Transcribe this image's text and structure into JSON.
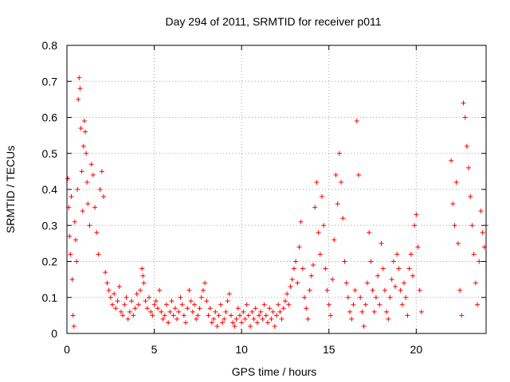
{
  "chart_data": {
    "type": "scatter",
    "title": "Day 294 of 2011, SRMTID for receiver p011",
    "xlabel": "GPS time / hours",
    "ylabel": "SRMTID / TECUs",
    "xlim": [
      0,
      24
    ],
    "ylim": [
      0,
      0.8
    ],
    "xticks": [
      0,
      5,
      10,
      15,
      20
    ],
    "xtick_labels": [
      "0",
      "5",
      "10",
      "15",
      "20"
    ],
    "yticks": [
      0,
      0.1,
      0.2,
      0.3,
      0.4,
      0.5,
      0.6,
      0.7,
      0.8
    ],
    "ytick_labels": [
      "0",
      "0.1",
      "0.2",
      "0.3",
      "0.4",
      "0.5",
      "0.6",
      "0.7",
      "0.8"
    ],
    "grid": true,
    "marker": "+",
    "color": "#ff0000",
    "series": [
      {
        "name": "SRMTID",
        "points": [
          [
            0.05,
            0.43
          ],
          [
            0.1,
            0.35
          ],
          [
            0.15,
            0.27
          ],
          [
            0.2,
            0.22
          ],
          [
            0.25,
            0.38
          ],
          [
            0.3,
            0.15
          ],
          [
            0.35,
            0.05
          ],
          [
            0.4,
            0.02
          ],
          [
            0.45,
            0.31
          ],
          [
            0.5,
            0.26
          ],
          [
            0.55,
            0.2
          ],
          [
            0.6,
            0.4
          ],
          [
            0.65,
            0.65
          ],
          [
            0.7,
            0.71
          ],
          [
            0.75,
            0.68
          ],
          [
            0.8,
            0.57
          ],
          [
            0.85,
            0.45
          ],
          [
            0.9,
            0.34
          ],
          [
            0.95,
            0.52
          ],
          [
            1.0,
            0.59
          ],
          [
            1.05,
            0.56
          ],
          [
            1.1,
            0.5
          ],
          [
            1.15,
            0.42
          ],
          [
            1.2,
            0.36
          ],
          [
            1.3,
            0.3
          ],
          [
            1.4,
            0.47
          ],
          [
            1.5,
            0.44
          ],
          [
            1.6,
            0.35
          ],
          [
            1.7,
            0.28
          ],
          [
            1.8,
            0.22
          ],
          [
            1.9,
            0.4
          ],
          [
            2.0,
            0.45
          ],
          [
            2.1,
            0.38
          ],
          [
            2.2,
            0.17
          ],
          [
            2.3,
            0.14
          ],
          [
            2.4,
            0.12
          ],
          [
            2.5,
            0.1
          ],
          [
            2.6,
            0.08
          ],
          [
            2.7,
            0.11
          ],
          [
            2.8,
            0.07
          ],
          [
            2.9,
            0.09
          ],
          [
            3.0,
            0.13
          ],
          [
            3.1,
            0.06
          ],
          [
            3.2,
            0.05
          ],
          [
            3.3,
            0.08
          ],
          [
            3.4,
            0.1
          ],
          [
            3.5,
            0.04
          ],
          [
            3.6,
            0.06
          ],
          [
            3.7,
            0.09
          ],
          [
            3.8,
            0.05
          ],
          [
            3.9,
            0.07
          ],
          [
            4.0,
            0.11
          ],
          [
            4.1,
            0.08
          ],
          [
            4.2,
            0.12
          ],
          [
            4.3,
            0.18
          ],
          [
            4.35,
            0.16
          ],
          [
            4.4,
            0.14
          ],
          [
            4.5,
            0.09
          ],
          [
            4.6,
            0.07
          ],
          [
            4.7,
            0.1
          ],
          [
            4.8,
            0.06
          ],
          [
            4.9,
            0.05
          ],
          [
            5.0,
            0.08
          ],
          [
            5.1,
            0.09
          ],
          [
            5.2,
            0.07
          ],
          [
            5.3,
            0.12
          ],
          [
            5.4,
            0.06
          ],
          [
            5.5,
            0.04
          ],
          [
            5.6,
            0.05
          ],
          [
            5.7,
            0.08
          ],
          [
            5.8,
            0.03
          ],
          [
            5.9,
            0.06
          ],
          [
            6.0,
            0.09
          ],
          [
            6.1,
            0.05
          ],
          [
            6.2,
            0.07
          ],
          [
            6.3,
            0.04
          ],
          [
            6.4,
            0.06
          ],
          [
            6.5,
            0.1
          ],
          [
            6.6,
            0.08
          ],
          [
            6.7,
            0.05
          ],
          [
            6.8,
            0.03
          ],
          [
            6.9,
            0.07
          ],
          [
            7.0,
            0.12
          ],
          [
            7.1,
            0.09
          ],
          [
            7.2,
            0.06
          ],
          [
            7.3,
            0.08
          ],
          [
            7.4,
            0.04
          ],
          [
            7.5,
            0.05
          ],
          [
            7.6,
            0.07
          ],
          [
            7.7,
            0.1
          ],
          [
            7.8,
            0.12
          ],
          [
            7.9,
            0.14
          ],
          [
            8.0,
            0.09
          ],
          [
            8.1,
            0.05
          ],
          [
            8.2,
            0.07
          ],
          [
            8.3,
            0.03
          ],
          [
            8.4,
            0.04
          ],
          [
            8.5,
            0.06
          ],
          [
            8.6,
            0.02
          ],
          [
            8.7,
            0.05
          ],
          [
            8.8,
            0.08
          ],
          [
            8.9,
            0.03
          ],
          [
            9.0,
            0.04
          ],
          [
            9.1,
            0.06
          ],
          [
            9.2,
            0.09
          ],
          [
            9.3,
            0.11
          ],
          [
            9.4,
            0.05
          ],
          [
            9.5,
            0.03
          ],
          [
            9.6,
            0.02
          ],
          [
            9.7,
            0.04
          ],
          [
            9.8,
            0.07
          ],
          [
            9.9,
            0.05
          ],
          [
            10.0,
            0.03
          ],
          [
            10.1,
            0.06
          ],
          [
            10.2,
            0.04
          ],
          [
            10.3,
            0.08
          ],
          [
            10.4,
            0.05
          ],
          [
            10.5,
            0.02
          ],
          [
            10.6,
            0.06
          ],
          [
            10.7,
            0.04
          ],
          [
            10.8,
            0.07
          ],
          [
            10.9,
            0.03
          ],
          [
            11.0,
            0.05
          ],
          [
            11.1,
            0.06
          ],
          [
            11.2,
            0.04
          ],
          [
            11.3,
            0.08
          ],
          [
            11.4,
            0.05
          ],
          [
            11.5,
            0.03
          ],
          [
            11.6,
            0.07
          ],
          [
            11.7,
            0.04
          ],
          [
            11.8,
            0.06
          ],
          [
            11.9,
            0.02
          ],
          [
            12.0,
            0.05
          ],
          [
            12.1,
            0.08
          ],
          [
            12.2,
            0.06
          ],
          [
            12.3,
            0.04
          ],
          [
            12.4,
            0.07
          ],
          [
            12.5,
            0.09
          ],
          [
            12.6,
            0.11
          ],
          [
            12.7,
            0.08
          ],
          [
            12.8,
            0.13
          ],
          [
            12.9,
            0.15
          ],
          [
            13.0,
            0.18
          ],
          [
            13.1,
            0.2
          ],
          [
            13.2,
            0.14
          ],
          [
            13.3,
            0.24
          ],
          [
            13.4,
            0.31
          ],
          [
            13.5,
            0.18
          ],
          [
            13.6,
            0.1
          ],
          [
            13.7,
            0.07
          ],
          [
            13.8,
            0.04
          ],
          [
            13.9,
            0.12
          ],
          [
            14.0,
            0.16
          ],
          [
            14.1,
            0.19
          ],
          [
            14.2,
            0.35
          ],
          [
            14.3,
            0.42
          ],
          [
            14.4,
            0.28
          ],
          [
            14.5,
            0.22
          ],
          [
            14.6,
            0.38
          ],
          [
            14.7,
            0.3
          ],
          [
            14.8,
            0.18
          ],
          [
            14.9,
            0.12
          ],
          [
            15.0,
            0.08
          ],
          [
            15.1,
            0.05
          ],
          [
            15.2,
            0.15
          ],
          [
            15.3,
            0.26
          ],
          [
            15.4,
            0.44
          ],
          [
            15.5,
            0.36
          ],
          [
            15.6,
            0.5
          ],
          [
            15.7,
            0.42
          ],
          [
            15.8,
            0.32
          ],
          [
            15.9,
            0.2
          ],
          [
            16.0,
            0.14
          ],
          [
            16.1,
            0.1
          ],
          [
            16.2,
            0.06
          ],
          [
            16.3,
            0.04
          ],
          [
            16.4,
            0.08
          ],
          [
            16.5,
            0.12
          ],
          [
            16.6,
            0.59
          ],
          [
            16.7,
            0.44
          ],
          [
            16.8,
            0.1
          ],
          [
            16.9,
            0.06
          ],
          [
            17.0,
            0.02
          ],
          [
            17.1,
            0.08
          ],
          [
            17.2,
            0.14
          ],
          [
            17.3,
            0.28
          ],
          [
            17.4,
            0.2
          ],
          [
            17.5,
            0.12
          ],
          [
            17.6,
            0.06
          ],
          [
            17.7,
            0.1
          ],
          [
            17.8,
            0.16
          ],
          [
            17.9,
            0.08
          ],
          [
            18.0,
            0.25
          ],
          [
            18.1,
            0.18
          ],
          [
            18.2,
            0.12
          ],
          [
            18.3,
            0.06
          ],
          [
            18.4,
            0.04
          ],
          [
            18.5,
            0.1
          ],
          [
            18.6,
            0.15
          ],
          [
            18.7,
            0.2
          ],
          [
            18.8,
            0.13
          ],
          [
            18.9,
            0.22
          ],
          [
            19.0,
            0.18
          ],
          [
            19.1,
            0.12
          ],
          [
            19.2,
            0.08
          ],
          [
            19.3,
            0.14
          ],
          [
            19.4,
            0.1
          ],
          [
            19.5,
            0.05
          ],
          [
            19.6,
            0.18
          ],
          [
            19.7,
            0.22
          ],
          [
            19.8,
            0.16
          ],
          [
            19.9,
            0.3
          ],
          [
            20.0,
            0.33
          ],
          [
            20.1,
            0.24
          ],
          [
            20.2,
            0.12
          ],
          [
            20.3,
            0.06
          ],
          [
            22.0,
            0.48
          ],
          [
            22.1,
            0.36
          ],
          [
            22.2,
            0.3
          ],
          [
            22.3,
            0.42
          ],
          [
            22.4,
            0.25
          ],
          [
            22.5,
            0.12
          ],
          [
            22.6,
            0.05
          ],
          [
            22.7,
            0.64
          ],
          [
            22.8,
            0.6
          ],
          [
            22.9,
            0.52
          ],
          [
            23.0,
            0.46
          ],
          [
            23.1,
            0.38
          ],
          [
            23.2,
            0.3
          ],
          [
            23.3,
            0.22
          ],
          [
            23.4,
            0.14
          ],
          [
            23.5,
            0.08
          ],
          [
            23.6,
            0.2
          ],
          [
            23.7,
            0.34
          ],
          [
            23.8,
            0.28
          ],
          [
            23.9,
            0.24
          ],
          [
            24.0,
            0.3
          ]
        ]
      }
    ]
  }
}
